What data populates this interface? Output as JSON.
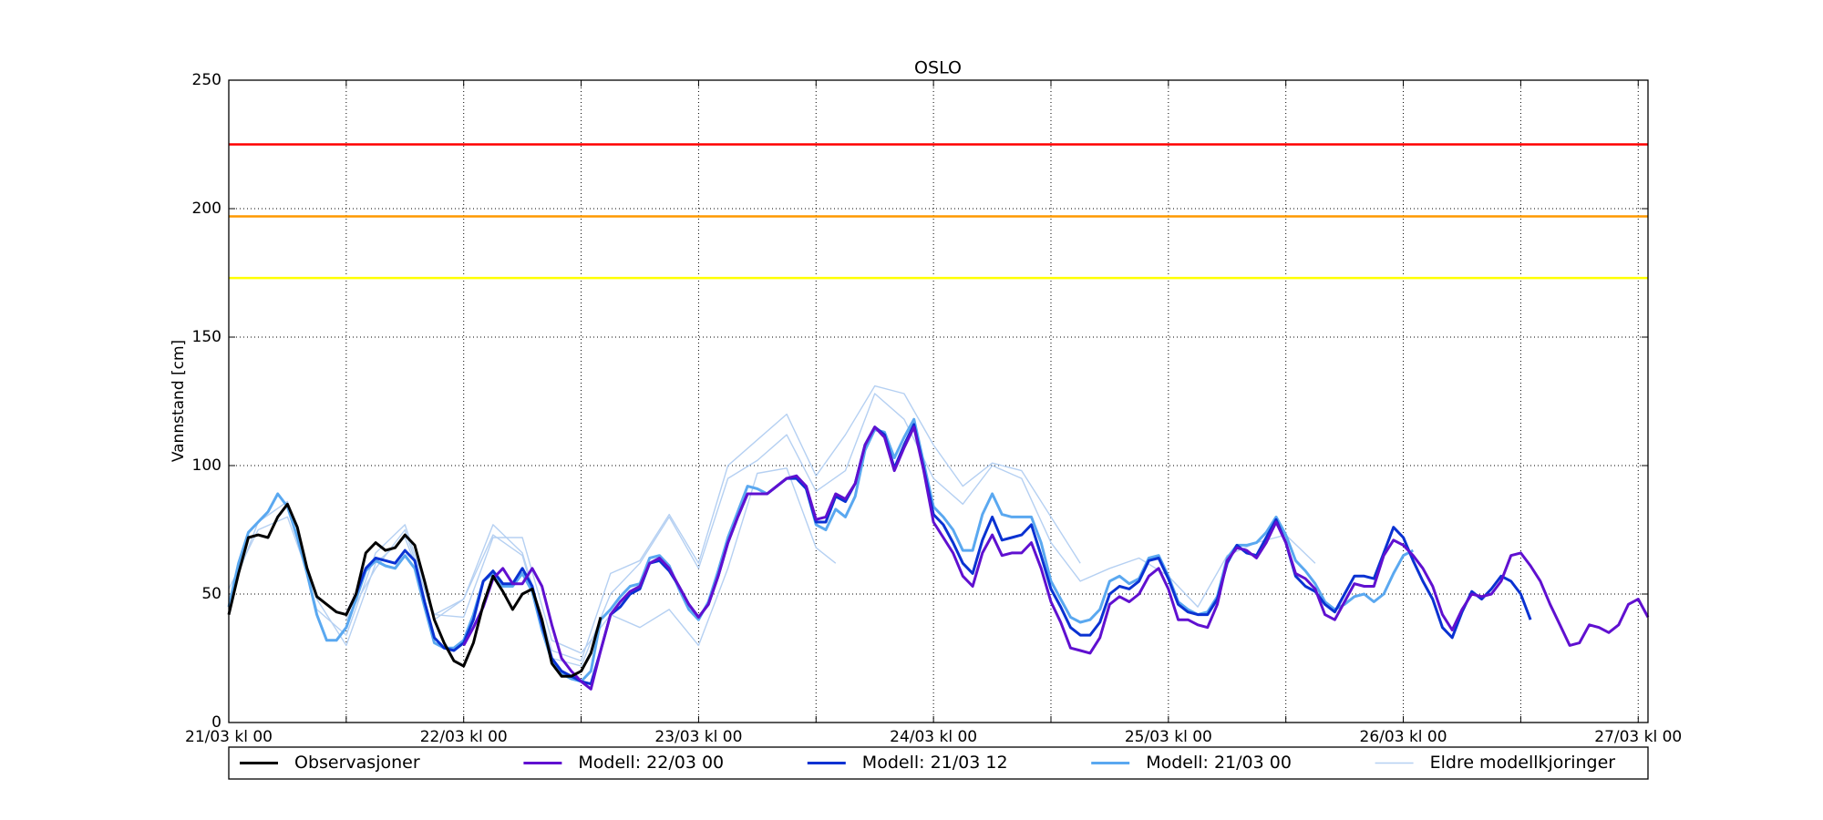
{
  "chart_data": {
    "type": "line",
    "title": "OSLO",
    "ylabel": "Vannstand [cm]",
    "xlim": [
      0,
      145
    ],
    "ylim": [
      0,
      250
    ],
    "yticks": [
      0,
      50,
      100,
      150,
      200,
      250
    ],
    "xticks": [
      {
        "value": 0,
        "label": "21/03 kl 00"
      },
      {
        "value": 24,
        "label": "22/03 kl 00"
      },
      {
        "value": 48,
        "label": "23/03 kl 00"
      },
      {
        "value": 72,
        "label": "24/03 kl 00"
      },
      {
        "value": 96,
        "label": "25/03 kl 00"
      },
      {
        "value": 120,
        "label": "26/03 kl 00"
      },
      {
        "value": 144,
        "label": "27/03 kl 00"
      }
    ],
    "xminorticks": [
      12,
      36,
      60,
      84,
      108,
      132
    ],
    "grid": true,
    "legend": "bottom",
    "thresholds": [
      {
        "value": 225,
        "color": "#ff0000"
      },
      {
        "value": 197,
        "color": "#ff9900"
      },
      {
        "value": 173,
        "color": "#ffff00"
      }
    ],
    "series": [
      {
        "name": "Observasjoner",
        "color": "#000000",
        "x": [
          0,
          1,
          2,
          3,
          4,
          5,
          6,
          7,
          8,
          9,
          10,
          11,
          12,
          13,
          14,
          15,
          16,
          17,
          18,
          19,
          20,
          21,
          22,
          23,
          24,
          25,
          26,
          27,
          28,
          29,
          30,
          31,
          32,
          33,
          34,
          35,
          36,
          37,
          38
        ],
        "values": [
          42,
          58,
          72,
          73,
          72,
          80,
          85,
          76,
          60,
          49,
          46,
          43,
          42,
          50,
          66,
          70,
          67,
          68,
          73,
          69,
          55,
          40,
          31,
          24,
          22,
          31,
          46,
          57,
          51,
          44,
          50,
          52,
          40,
          23,
          18,
          18,
          20,
          27,
          41
        ]
      },
      {
        "name": "Modell: 22/03 00",
        "color": "#6010d0",
        "x": [
          24,
          25,
          26,
          27,
          28,
          29,
          30,
          31,
          32,
          33,
          34,
          35,
          36,
          37,
          38,
          39,
          40,
          41,
          42,
          43,
          44,
          45,
          46,
          47,
          48,
          49,
          50,
          51,
          52,
          53,
          54,
          55,
          56,
          57,
          58,
          59,
          60,
          61,
          62,
          63,
          64,
          65,
          66,
          67,
          68,
          69,
          70,
          71,
          72,
          73,
          74,
          75,
          76,
          77,
          78,
          79,
          80,
          81,
          82,
          83,
          84,
          85,
          86,
          87,
          88,
          89,
          90,
          91,
          92,
          93,
          94,
          95,
          96,
          97,
          98,
          99,
          100,
          101,
          102,
          103,
          104,
          105,
          106,
          107,
          108,
          109,
          110,
          111,
          112,
          113,
          114,
          115,
          116,
          117,
          118,
          119,
          120,
          121,
          122,
          123,
          124,
          125,
          126,
          127,
          128,
          129,
          130,
          131,
          132,
          133,
          134,
          135,
          136,
          137,
          138,
          139,
          140,
          141,
          142,
          143,
          144,
          145
        ],
        "values": [
          30,
          37,
          45,
          56,
          60,
          54,
          54,
          60,
          53,
          38,
          25,
          20,
          16,
          13,
          28,
          42,
          47,
          51,
          53,
          62,
          64,
          60,
          53,
          46,
          41,
          46,
          57,
          70,
          80,
          89,
          89,
          89,
          92,
          95,
          96,
          92,
          79,
          80,
          89,
          87,
          93,
          108,
          115,
          111,
          98,
          107,
          115,
          98,
          78,
          72,
          66,
          57,
          53,
          66,
          73,
          65,
          66,
          66,
          70,
          60,
          47,
          39,
          29,
          28,
          27,
          33,
          46,
          49,
          47,
          50,
          57,
          60,
          52,
          40,
          40,
          38,
          37,
          46,
          63,
          68,
          67,
          64,
          70,
          78,
          70,
          58,
          56,
          52,
          42,
          40,
          47,
          54,
          53,
          53,
          65,
          71,
          69,
          65,
          60,
          53,
          42,
          36,
          44,
          50,
          49,
          50,
          55,
          65,
          66,
          61,
          55,
          46,
          38,
          30,
          31,
          38,
          37,
          35,
          38,
          46,
          48,
          41
        ]
      },
      {
        "name": "Modell: 21/03 12",
        "color": "#0a32d2",
        "x": [
          12,
          13,
          14,
          15,
          16,
          17,
          18,
          19,
          20,
          21,
          22,
          23,
          24,
          25,
          26,
          27,
          28,
          29,
          30,
          31,
          32,
          33,
          34,
          35,
          36,
          37,
          38,
          39,
          40,
          41,
          42,
          43,
          44,
          45,
          46,
          47,
          48,
          49,
          50,
          51,
          52,
          53,
          54,
          55,
          56,
          57,
          58,
          59,
          60,
          61,
          62,
          63,
          64,
          65,
          66,
          67,
          68,
          69,
          70,
          71,
          72,
          73,
          74,
          75,
          76,
          77,
          78,
          79,
          80,
          81,
          82,
          83,
          84,
          85,
          86,
          87,
          88,
          89,
          90,
          91,
          92,
          93,
          94,
          95,
          96,
          97,
          98,
          99,
          100,
          101,
          102,
          103,
          104,
          105,
          106,
          107,
          108,
          109,
          110,
          111,
          112,
          113,
          114,
          115,
          116,
          117,
          118,
          119,
          120,
          121,
          122,
          123,
          124,
          125,
          126,
          127,
          128,
          129,
          130,
          131,
          132,
          133
        ],
        "values": [
          42,
          50,
          60,
          64,
          63,
          62,
          67,
          63,
          47,
          33,
          29,
          28,
          31,
          40,
          55,
          59,
          54,
          54,
          60,
          53,
          38,
          25,
          20,
          18,
          16,
          15,
          28,
          42,
          45,
          50,
          52,
          62,
          63,
          59,
          53,
          46,
          41,
          46,
          57,
          70,
          80,
          89,
          89,
          89,
          92,
          95,
          95,
          91,
          78,
          78,
          88,
          86,
          93,
          108,
          115,
          112,
          99,
          108,
          116,
          99,
          81,
          77,
          70,
          62,
          58,
          71,
          80,
          71,
          72,
          73,
          77,
          65,
          52,
          45,
          37,
          34,
          34,
          39,
          50,
          53,
          52,
          55,
          63,
          64,
          56,
          46,
          43,
          42,
          42,
          48,
          62,
          69,
          66,
          65,
          72,
          79,
          70,
          57,
          53,
          51,
          46,
          43,
          50,
          57,
          57,
          56,
          66,
          76,
          72,
          63,
          55,
          48,
          37,
          33,
          43,
          51,
          48,
          52,
          57,
          55,
          50,
          40
        ]
      },
      {
        "name": "Modell: 21/03 00",
        "color": "#5aa8f0",
        "x": [
          0,
          1,
          2,
          3,
          4,
          5,
          6,
          7,
          8,
          9,
          10,
          11,
          12,
          13,
          14,
          15,
          16,
          17,
          18,
          19,
          20,
          21,
          22,
          23,
          24,
          25,
          26,
          27,
          28,
          29,
          30,
          31,
          32,
          33,
          34,
          35,
          36,
          37,
          38,
          39,
          40,
          41,
          42,
          43,
          44,
          45,
          46,
          47,
          48,
          49,
          50,
          51,
          52,
          53,
          54,
          55,
          56,
          57,
          58,
          59,
          60,
          61,
          62,
          63,
          64,
          65,
          66,
          67,
          68,
          69,
          70,
          71,
          72,
          73,
          74,
          75,
          76,
          77,
          78,
          79,
          80,
          81,
          82,
          83,
          84,
          85,
          86,
          87,
          88,
          89,
          90,
          91,
          92,
          93,
          94,
          95,
          96,
          97,
          98,
          99,
          100,
          101,
          102,
          103,
          104,
          105,
          106,
          107,
          108,
          109,
          110,
          111,
          112,
          113,
          114,
          115,
          116,
          117,
          118,
          119,
          120,
          121
        ],
        "values": [
          45,
          62,
          74,
          78,
          82,
          89,
          84,
          72,
          58,
          42,
          32,
          32,
          37,
          48,
          59,
          63,
          61,
          60,
          65,
          60,
          45,
          31,
          29,
          29,
          32,
          42,
          55,
          58,
          53,
          53,
          58,
          51,
          36,
          24,
          19,
          17,
          16,
          20,
          40,
          44,
          49,
          53,
          54,
          64,
          65,
          61,
          52,
          44,
          40,
          47,
          59,
          72,
          82,
          92,
          91,
          89,
          92,
          95,
          96,
          91,
          77,
          75,
          83,
          80,
          88,
          106,
          114,
          113,
          103,
          111,
          118,
          101,
          84,
          80,
          75,
          67,
          67,
          81,
          89,
          81,
          80,
          80,
          80,
          70,
          55,
          48,
          41,
          39,
          40,
          44,
          55,
          57,
          54,
          56,
          64,
          65,
          57,
          47,
          44,
          42,
          43,
          49,
          64,
          69,
          69,
          70,
          74,
          80,
          73,
          63,
          59,
          54,
          47,
          44,
          46,
          49,
          50,
          47,
          50,
          58,
          65,
          67
        ]
      },
      {
        "name": "Eldre modellkjoringer",
        "color": "#b5d0f2",
        "runs": [
          {
            "x": [
              0,
              3,
              6,
              9,
              12,
              15,
              18,
              21,
              24,
              27,
              30,
              33,
              36,
              39,
              42,
              45,
              48,
              51,
              54,
              57,
              60,
              63,
              66,
              69,
              72,
              75,
              78,
              81,
              84,
              87
            ],
            "values": [
              48,
              78,
              86,
              44,
              34,
              66,
              77,
              42,
              48,
              77,
              66,
              28,
              24,
              58,
              63,
              81,
              62,
              100,
              110,
              120,
              96,
              112,
              131,
              128,
              108,
              92,
              101,
              98,
              80,
              62
            ]
          },
          {
            "x": [
              0,
              3,
              6,
              9,
              12,
              15,
              18,
              21,
              24,
              27,
              30,
              33,
              36,
              39,
              42,
              45,
              48,
              51,
              54,
              57,
              60,
              62
            ],
            "values": [
              52,
              75,
              80,
              48,
              30,
              62,
              72,
              42,
              41,
              72,
              72,
              32,
              27,
              42,
              37,
              44,
              30,
              60,
              97,
              99,
              68,
              62
            ]
          },
          {
            "x": [
              12,
              15,
              18,
              21,
              24,
              27,
              30,
              33,
              36,
              39,
              42,
              45,
              48,
              51,
              54,
              57,
              60,
              63,
              66,
              69,
              72,
              75,
              78,
              81,
              84,
              87,
              90,
              93,
              96,
              99,
              102,
              105,
              108,
              111
            ],
            "values": [
              40,
              60,
              75,
              40,
              48,
              73,
              65,
              25,
              22,
              50,
              62,
              80,
              60,
              95,
              102,
              112,
              90,
              98,
              128,
              118,
              95,
              85,
              100,
              95,
              70,
              55,
              60,
              64,
              57,
              45,
              65,
              70,
              73,
              62
            ]
          }
        ]
      }
    ]
  }
}
